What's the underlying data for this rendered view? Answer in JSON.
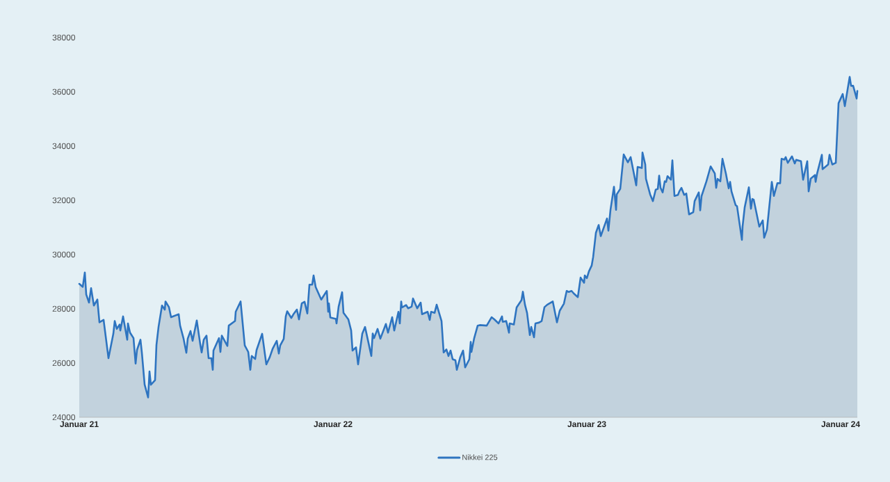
{
  "chart_data": {
    "type": "area",
    "xlim": [
      "2021-01-01",
      "2024-01-25"
    ],
    "xticks": [
      {
        "value": "2021-01-01",
        "label": "Januar 21"
      },
      {
        "value": "2022-01-01",
        "label": "Januar 22"
      },
      {
        "value": "2023-01-01",
        "label": "Januar 23"
      },
      {
        "value": "2024-01-01",
        "label": "Januar 24"
      }
    ],
    "ylim": [
      24000,
      38000
    ],
    "yticks": [
      24000,
      26000,
      28000,
      30000,
      32000,
      34000,
      36000,
      38000
    ],
    "legend": "bottom",
    "x": [
      "2021-01-01",
      "2021-01-06",
      "2021-01-09",
      "2021-01-11",
      "2021-01-15",
      "2021-01-18",
      "2021-01-22",
      "2021-01-27",
      "2021-01-30",
      "2021-02-05",
      "2021-02-12",
      "2021-02-19",
      "2021-02-21",
      "2021-02-24",
      "2021-02-28",
      "2021-03-01",
      "2021-03-05",
      "2021-03-11",
      "2021-03-12",
      "2021-03-15",
      "2021-03-20",
      "2021-03-23",
      "2021-03-25",
      "2021-03-30",
      "2021-04-01",
      "2021-04-05",
      "2021-04-10",
      "2021-04-12",
      "2021-04-14",
      "2021-04-20",
      "2021-04-22",
      "2021-04-25",
      "2021-04-30",
      "2021-05-04",
      "2021-05-05",
      "2021-05-10",
      "2021-05-13",
      "2021-05-24",
      "2021-05-26",
      "2021-05-31",
      "2021-06-04",
      "2021-06-06",
      "2021-06-10",
      "2021-06-13",
      "2021-06-19",
      "2021-06-24",
      "2021-06-26",
      "2021-06-29",
      "2021-07-03",
      "2021-07-06",
      "2021-07-10",
      "2021-07-12",
      "2021-07-13",
      "2021-07-21",
      "2021-07-23",
      "2021-07-25",
      "2021-08-02",
      "2021-08-04",
      "2021-08-13",
      "2021-08-14",
      "2021-08-21",
      "2021-08-27",
      "2021-09-01",
      "2021-09-04",
      "2021-09-06",
      "2021-09-11",
      "2021-09-13",
      "2021-09-21",
      "2021-09-27",
      "2021-10-02",
      "2021-10-06",
      "2021-10-12",
      "2021-10-15",
      "2021-10-17",
      "2021-10-22",
      "2021-10-25",
      "2021-10-27",
      "2021-11-02",
      "2021-11-05",
      "2021-11-10",
      "2021-11-13",
      "2021-11-17",
      "2021-11-21",
      "2021-11-25",
      "2021-11-28",
      "2021-12-02",
      "2021-12-04",
      "2021-12-07",
      "2021-12-15",
      "2021-12-23",
      "2021-12-25",
      "2021-12-26",
      "2021-12-28",
      "2022-01-05",
      "2022-01-06",
      "2022-01-09",
      "2022-01-14",
      "2022-01-16",
      "2022-01-23",
      "2022-01-27",
      "2022-01-29",
      "2022-02-03",
      "2022-02-06",
      "2022-02-12",
      "2022-02-16",
      "2022-02-21",
      "2022-02-25",
      "2022-02-27",
      "2022-03-01",
      "2022-03-06",
      "2022-03-10",
      "2022-03-18",
      "2022-03-21",
      "2022-03-27",
      "2022-03-30",
      "2022-04-05",
      "2022-04-07",
      "2022-04-09",
      "2022-04-10",
      "2022-04-16",
      "2022-04-19",
      "2022-04-24",
      "2022-04-26",
      "2022-05-02",
      "2022-05-07",
      "2022-05-09",
      "2022-05-17",
      "2022-05-20",
      "2022-05-22",
      "2022-05-27",
      "2022-05-30",
      "2022-06-06",
      "2022-06-09",
      "2022-06-13",
      "2022-06-16",
      "2022-06-19",
      "2022-06-22",
      "2022-06-26",
      "2022-06-28",
      "2022-07-03",
      "2022-07-07",
      "2022-07-10",
      "2022-07-16",
      "2022-07-18",
      "2022-07-19",
      "2022-07-23",
      "2022-07-28",
      "2022-07-31",
      "2022-08-10",
      "2022-08-17",
      "2022-08-21",
      "2022-08-27",
      "2022-09-01",
      "2022-09-02",
      "2022-09-07",
      "2022-09-11",
      "2022-09-12",
      "2022-09-18",
      "2022-09-22",
      "2022-09-29",
      "2022-10-01",
      "2022-10-04",
      "2022-10-07",
      "2022-10-11",
      "2022-10-13",
      "2022-10-17",
      "2022-10-19",
      "2022-10-24",
      "2022-10-28",
      "2022-11-01",
      "2022-11-05",
      "2022-11-13",
      "2022-11-19",
      "2022-11-23",
      "2022-11-29",
      "2022-12-03",
      "2022-12-06",
      "2022-12-10",
      "2022-12-13",
      "2022-12-19",
      "2022-12-23",
      "2022-12-28",
      "2022-12-29",
      "2023-01-01",
      "2023-01-04",
      "2023-01-08",
      "2023-01-10",
      "2023-01-14",
      "2023-01-18",
      "2023-01-21",
      "2023-01-30",
      "2023-02-01",
      "2023-02-04",
      "2023-02-09",
      "2023-02-12",
      "2023-02-13",
      "2023-02-18",
      "2023-02-23",
      "2023-03-01",
      "2023-03-05",
      "2023-03-13",
      "2023-03-15",
      "2023-03-21",
      "2023-03-22",
      "2023-03-26",
      "2023-03-27",
      "2023-04-02",
      "2023-04-06",
      "2023-04-10",
      "2023-04-13",
      "2023-04-15",
      "2023-04-17",
      "2023-04-20",
      "2023-04-23",
      "2023-04-25",
      "2023-04-27",
      "2023-05-02",
      "2023-05-04",
      "2023-05-07",
      "2023-05-12",
      "2023-05-14",
      "2023-05-17",
      "2023-05-21",
      "2023-05-24",
      "2023-05-28",
      "2023-06-03",
      "2023-06-05",
      "2023-06-11",
      "2023-06-13",
      "2023-06-15",
      "2023-06-22",
      "2023-06-28",
      "2023-07-04",
      "2023-07-06",
      "2023-07-08",
      "2023-07-12",
      "2023-07-15",
      "2023-07-20",
      "2023-07-24",
      "2023-07-26",
      "2023-07-28",
      "2023-08-03",
      "2023-08-05",
      "2023-08-12",
      "2023-08-13",
      "2023-08-16",
      "2023-08-22",
      "2023-08-25",
      "2023-08-27",
      "2023-08-29",
      "2023-09-06",
      "2023-09-11",
      "2023-09-13",
      "2023-09-17",
      "2023-09-24",
      "2023-09-27",
      "2023-10-02",
      "2023-10-06",
      "2023-10-08",
      "2023-10-12",
      "2023-10-14",
      "2023-10-17",
      "2023-10-23",
      "2023-10-27",
      "2023-10-29",
      "2023-11-05",
      "2023-11-08",
      "2023-11-14",
      "2023-11-16",
      "2023-11-19",
      "2023-11-25",
      "2023-11-26",
      "2023-11-28",
      "2023-12-05",
      "2023-12-06",
      "2023-12-14",
      "2023-12-16",
      "2023-12-20",
      "2023-12-25",
      "2023-12-29",
      "2024-01-04",
      "2024-01-07",
      "2024-01-14",
      "2024-01-16",
      "2024-01-19",
      "2024-01-24",
      "2024-01-25"
    ],
    "series": [
      {
        "name": "Nikkei 225",
        "color": "#2e74c0",
        "values": [
          28920,
          28810,
          29340,
          28530,
          28230,
          28760,
          28120,
          28340,
          27500,
          27590,
          26180,
          27080,
          27550,
          27260,
          27420,
          27200,
          27720,
          26860,
          27460,
          27120,
          26920,
          25980,
          26480,
          26860,
          26390,
          25210,
          24730,
          25690,
          25200,
          25370,
          26670,
          27330,
          28120,
          27970,
          28270,
          28060,
          27690,
          27800,
          27380,
          26900,
          26380,
          26900,
          27180,
          26820,
          27570,
          26690,
          26390,
          26860,
          27010,
          26180,
          26180,
          25750,
          26460,
          26920,
          26410,
          27010,
          26630,
          27380,
          27550,
          27890,
          28270,
          26650,
          26410,
          25750,
          26260,
          26150,
          26480,
          27080,
          25950,
          26220,
          26520,
          26820,
          26350,
          26650,
          26890,
          27720,
          27910,
          27660,
          27800,
          27970,
          27610,
          28200,
          28260,
          27830,
          28890,
          28890,
          29230,
          28800,
          28340,
          28660,
          27890,
          28200,
          27680,
          27630,
          27460,
          28080,
          28610,
          27850,
          27610,
          27200,
          26460,
          26580,
          25950,
          27080,
          27330,
          26740,
          26260,
          27090,
          26920,
          27260,
          26900,
          27440,
          27120,
          27690,
          27200,
          27890,
          27460,
          28270,
          28050,
          28140,
          28020,
          28080,
          28380,
          28020,
          28230,
          27800,
          27890,
          27590,
          27890,
          27850,
          28150,
          27550,
          26390,
          26500,
          26260,
          26460,
          26140,
          26100,
          25750,
          26220,
          26460,
          25840,
          26140,
          26780,
          26410,
          26920,
          27380,
          27400,
          27380,
          27690,
          27610,
          27460,
          27720,
          27520,
          27550,
          27120,
          27460,
          27420,
          28050,
          28320,
          28630,
          28150,
          27850,
          27030,
          27330,
          26950,
          27460,
          27490,
          27550,
          28060,
          28150,
          28270,
          27500,
          27930,
          28190,
          28660,
          28620,
          28660,
          28570,
          28430,
          29150,
          28960,
          29230,
          29130,
          29380,
          29600,
          29900,
          30800,
          31090,
          30680,
          31330,
          30880,
          31650,
          32500,
          31650,
          32220,
          32420,
          33690,
          33400,
          33590,
          32550,
          33230,
          33190,
          33760,
          33320,
          32790,
          32220,
          31970,
          32390,
          32420,
          32910,
          32460,
          32290,
          32700,
          32680,
          32890,
          32760,
          33470,
          32160,
          32200,
          32330,
          32460,
          32200,
          32250,
          31480,
          31560,
          31970,
          32290,
          31630,
          32160,
          32700,
          33250,
          32990,
          32460,
          32790,
          32700,
          33530,
          32980,
          32440,
          32680,
          32330,
          31820,
          31780,
          30540,
          31050,
          31740,
          32480,
          31690,
          32050,
          32020,
          31030,
          31260,
          30620,
          30920,
          32680,
          32160,
          32630,
          32630,
          33530,
          33500,
          33590,
          33380,
          33620,
          33360,
          33490,
          33440,
          32760,
          33440,
          32330,
          32800,
          32930,
          32680,
          32970,
          33680,
          33150,
          33320,
          33680,
          33320,
          33380,
          35580,
          35920,
          35470,
          36550,
          36220,
          36220,
          35750,
          36030
        ]
      }
    ]
  }
}
